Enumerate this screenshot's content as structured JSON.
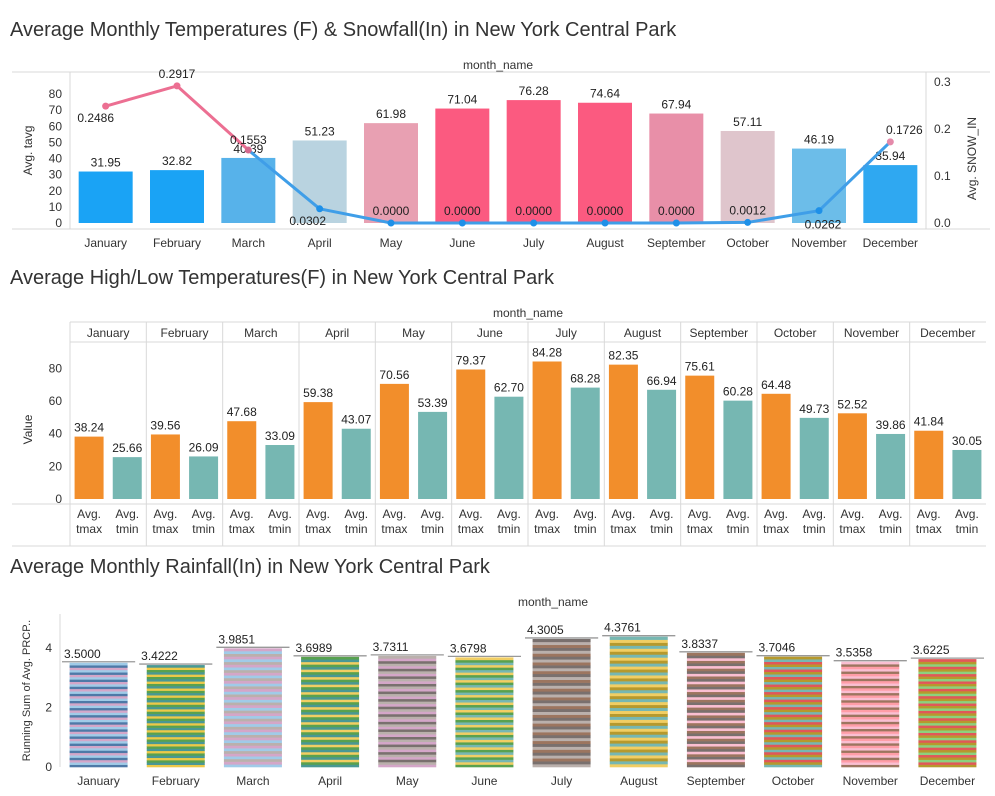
{
  "chart_data": [
    {
      "type": "bar+line",
      "title": "Average Monthly Temperatures (F) & Snowfall(In) in New York Central Park",
      "header": "month_name",
      "categories": [
        "January",
        "February",
        "March",
        "April",
        "May",
        "June",
        "July",
        "August",
        "September",
        "October",
        "November",
        "December"
      ],
      "bar_series": {
        "name": "Avg. tavg",
        "values": [
          31.95,
          32.82,
          40.39,
          51.23,
          61.98,
          71.04,
          76.28,
          74.64,
          67.94,
          57.11,
          46.19,
          35.94
        ],
        "labels": [
          "31.95",
          "32.82",
          "40.39",
          "51.23",
          "61.98",
          "71.04",
          "76.28",
          "74.64",
          "67.94",
          "57.11",
          "46.19",
          "35.94"
        ],
        "colors": [
          "#1aa3f5",
          "#1aa3f5",
          "#57b2ea",
          "#b9d3e0",
          "#e8a0b2",
          "#fb5a80",
          "#fb5a80",
          "#fb5a80",
          "#e88fa8",
          "#dfc5cc",
          "#6cbde9",
          "#2fa8f1"
        ]
      },
      "line_series": {
        "name": "Avg. SNOW_IN",
        "values": [
          0.2486,
          0.2917,
          0.1553,
          0.0302,
          0.0,
          0.0,
          0.0,
          0.0,
          0.0,
          0.0012,
          0.0262,
          0.1726
        ],
        "labels": [
          "0.2486",
          "0.2917",
          "0.1553",
          "0.0302",
          "0.0000",
          "0.0000",
          "0.0000",
          "0.0000",
          "0.0000",
          "0.0012",
          "0.0262",
          "0.1726"
        ],
        "colors": [
          "#ec6f92",
          "#ec6f92",
          "#d56a8e",
          "#1e90e8",
          "#1e90e8",
          "#1e90e8",
          "#1e90e8",
          "#1e90e8",
          "#1e90e8",
          "#1e90e8",
          "#1e90e8",
          "#e48aaa"
        ]
      },
      "y_left": {
        "label": "Avg. tavg",
        "ticks": [
          0,
          10,
          20,
          30,
          40,
          50,
          60,
          70,
          80
        ],
        "range": [
          0,
          90
        ]
      },
      "y_right": {
        "label": "Avg. SNOW_IN",
        "ticks": [
          "0.0",
          "0.1",
          "0.2",
          "0.3"
        ],
        "range": [
          0,
          0.3
        ]
      }
    },
    {
      "type": "bar",
      "title": "Average High/Low Temperatures(F) in New York Central Park",
      "header": "month_name",
      "categories": [
        "January",
        "February",
        "March",
        "April",
        "May",
        "June",
        "July",
        "August",
        "September",
        "October",
        "November",
        "December"
      ],
      "measures": [
        "Avg.\ntmax",
        "Avg.\ntmin"
      ],
      "series": [
        {
          "name": "Avg. tmax",
          "color": "#f28e2b",
          "values": [
            38.24,
            39.56,
            47.68,
            59.38,
            70.56,
            79.37,
            84.28,
            82.35,
            75.61,
            64.48,
            52.52,
            41.84
          ],
          "labels": [
            "38.24",
            "39.56",
            "47.68",
            "59.38",
            "70.56",
            "79.37",
            "84.28",
            "82.35",
            "75.61",
            "64.48",
            "52.52",
            "41.84"
          ]
        },
        {
          "name": "Avg. tmin",
          "color": "#76b7b2",
          "values": [
            25.66,
            26.09,
            33.09,
            43.07,
            53.39,
            62.7,
            68.28,
            66.94,
            60.28,
            49.73,
            39.86,
            30.05
          ],
          "labels": [
            "25.66",
            "26.09",
            "33.09",
            "43.07",
            "53.39",
            "62.70",
            "68.28",
            "66.94",
            "60.28",
            "49.73",
            "39.86",
            "30.05"
          ]
        }
      ],
      "ylabel": "Value",
      "yticks": [
        0,
        20,
        40,
        60,
        80
      ],
      "ylim": [
        0,
        95
      ]
    },
    {
      "type": "stacked-bar",
      "title": "Average Monthly Rainfall(In) in New York Central Park",
      "header": "month_name",
      "categories": [
        "January",
        "February",
        "March",
        "April",
        "May",
        "June",
        "July",
        "August",
        "September",
        "October",
        "November",
        "December"
      ],
      "values": [
        3.5,
        3.4222,
        3.9851,
        3.6989,
        3.7311,
        3.6798,
        4.3005,
        4.3761,
        3.8337,
        3.7046,
        3.5358,
        3.6225
      ],
      "labels": [
        "3.5000",
        "3.4222",
        "3.9851",
        "3.6989",
        "3.7311",
        "3.6798",
        "4.3005",
        "4.3761",
        "3.8337",
        "3.7046",
        "3.5358",
        "3.6225"
      ],
      "ylabel": "Running Sum of Avg. PRCP..",
      "yticks": [
        0,
        2,
        4
      ],
      "ylim": [
        0,
        4.6
      ],
      "palette": [
        "#4e79a7",
        "#f28e2b",
        "#e15759",
        "#76b7b2",
        "#59a14f",
        "#edc948",
        "#b07aa1",
        "#ff9da7",
        "#9c755f",
        "#bab0ac",
        "#a0cbe8",
        "#ffbe7d",
        "#8cd17d",
        "#b6992d",
        "#f1ce63",
        "#499894",
        "#86bcb6",
        "#d37295",
        "#fabfd2",
        "#79706e",
        "#d4a6c8"
      ]
    }
  ]
}
